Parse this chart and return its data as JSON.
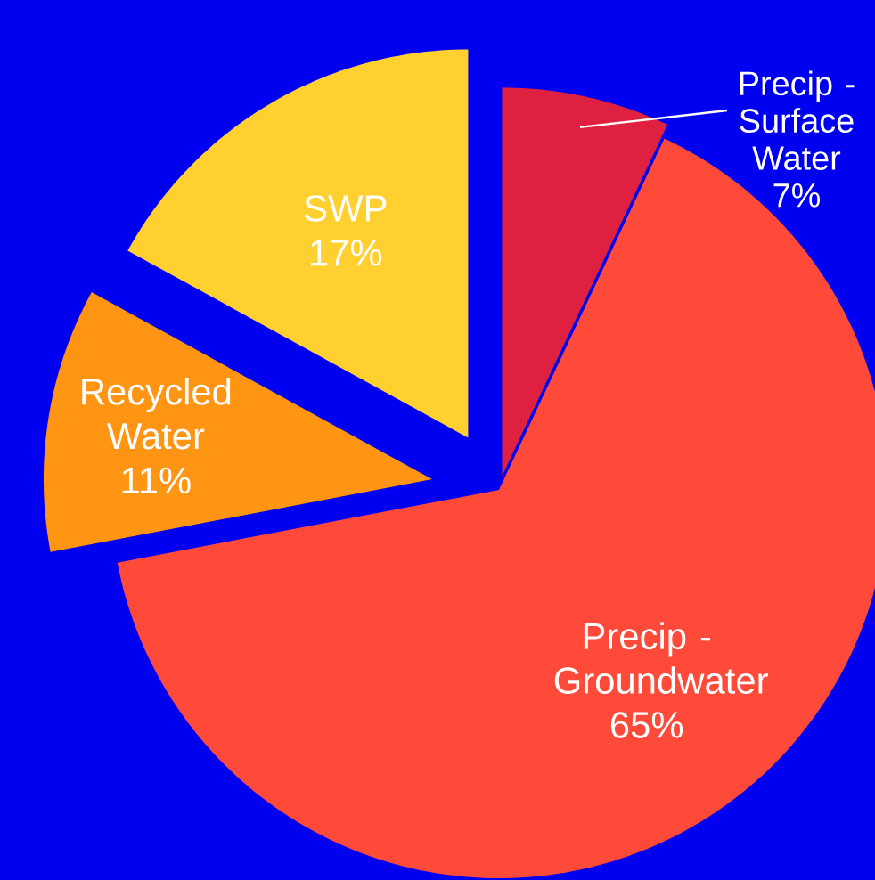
{
  "chart_data": {
    "type": "pie",
    "categories": [
      "Precip - Surface Water",
      "Precip - Groundwater",
      "Recycled Water",
      "SWP"
    ],
    "values": [
      7,
      65,
      11,
      17
    ],
    "colors": [
      "#e02040",
      "#ff4a3a",
      "#ff9512",
      "#ffd030"
    ],
    "value_labels": [
      "7%",
      "65%",
      "11%",
      "17%"
    ]
  }
}
